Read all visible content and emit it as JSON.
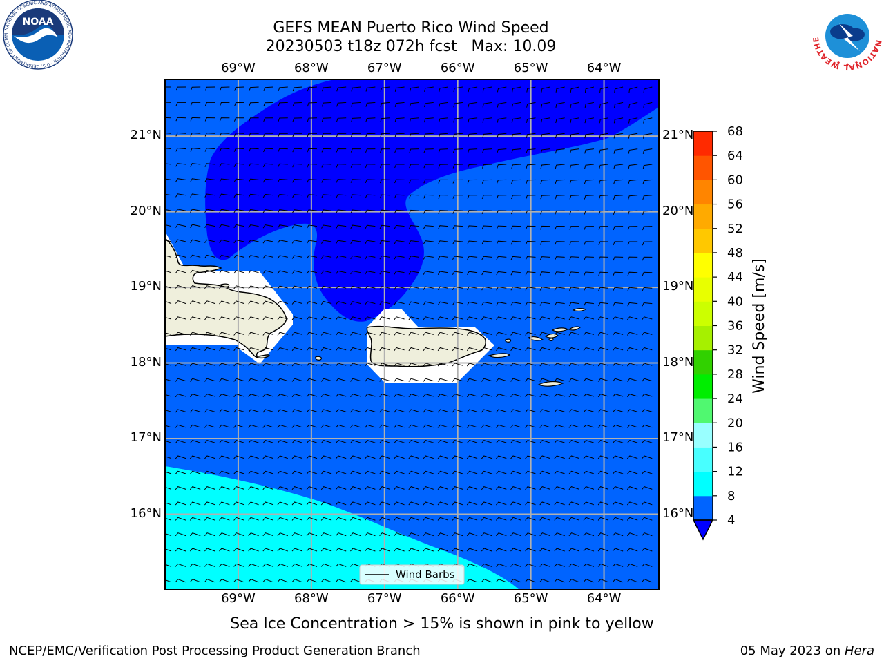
{
  "title": {
    "line1": "GEFS MEAN Puerto Rico Wind Speed",
    "line2": "20230503 t18z 072h fcst   Max: 10.09"
  },
  "caption": "Sea Ice Concentration > 15% is shown in pink to yellow",
  "footer": {
    "left": "NCEP/EMC/Verification Post Processing Product Generation Branch",
    "date": "05 May 2023 on ",
    "machine": "Hera"
  },
  "map": {
    "lon_range": [
      -70,
      -63.25
    ],
    "lat_range": [
      15,
      21.75
    ],
    "lon_ticks": [
      {
        "value": -69,
        "label": "69°W"
      },
      {
        "value": -68,
        "label": "68°W"
      },
      {
        "value": -67,
        "label": "67°W"
      },
      {
        "value": -66,
        "label": "66°W"
      },
      {
        "value": -65,
        "label": "65°W"
      },
      {
        "value": -64,
        "label": "64°W"
      }
    ],
    "lat_ticks": [
      {
        "value": 16,
        "label": "16°N"
      },
      {
        "value": 17,
        "label": "17°N"
      },
      {
        "value": 18,
        "label": "18°N"
      },
      {
        "value": 19,
        "label": "19°N"
      },
      {
        "value": 20,
        "label": "20°N"
      },
      {
        "value": 21,
        "label": "21°N"
      }
    ],
    "legend_label": "Wind Barbs",
    "fill_colors": {
      "4-8": "#0064ff",
      "8-12": "#00ffff",
      "below-4": "#0000ff",
      "land": "#efefdc"
    }
  },
  "colorbar": {
    "label": "Wind Speed [m/s]",
    "levels": [
      4,
      8,
      12,
      16,
      20,
      24,
      28,
      32,
      36,
      40,
      44,
      48,
      52,
      56,
      60,
      64,
      68
    ],
    "colors": [
      "#0064ff",
      "#00ffff",
      "#48ffff",
      "#99ffff",
      "#50f870",
      "#00ee00",
      "#31d100",
      "#a6f000",
      "#ccff00",
      "#e8ff00",
      "#ffff00",
      "#ffc800",
      "#ffaa00",
      "#ff8500",
      "#ff5500",
      "#ff2a00"
    ],
    "extend_color": "#0000ff"
  },
  "logos": {
    "noaa": "NOAA",
    "noaa_ring": "NATIONAL OCEANIC AND ATMOSPHERIC ADMINISTRATION · U.S. DEPARTMENT OF COMMERCE",
    "nws_ring": "NATIONAL WEATHER SERVICE"
  }
}
